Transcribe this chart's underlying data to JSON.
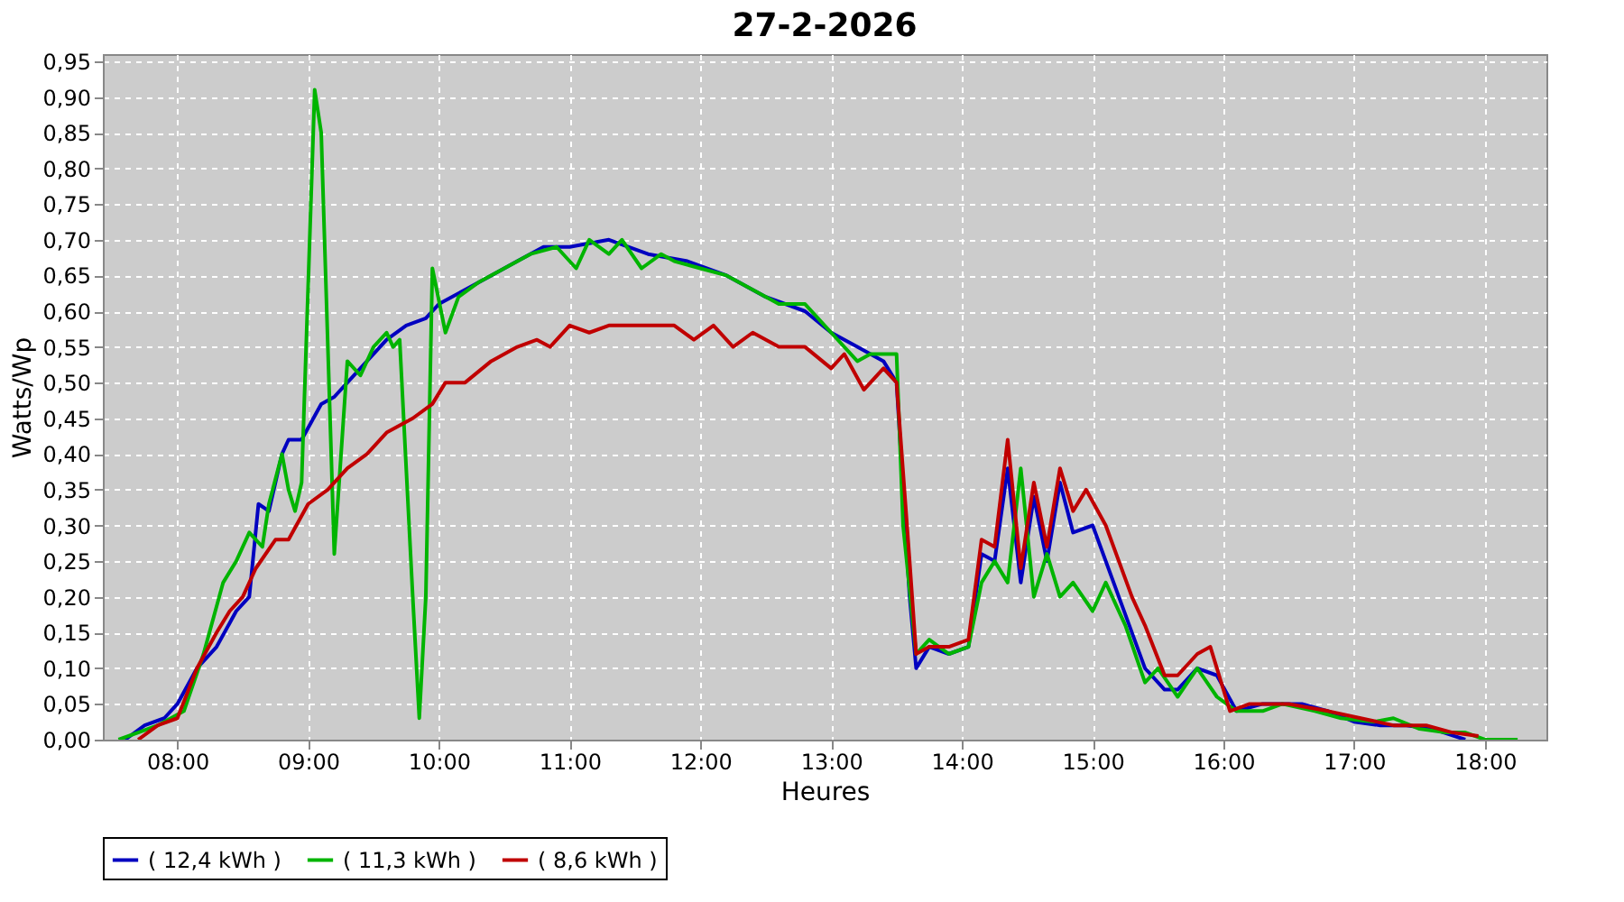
{
  "chart_data": {
    "type": "line",
    "title": "27-2-2026",
    "xlabel": "Heures",
    "ylabel": "Watts/Wp",
    "xlim": [
      7.43,
      18.47
    ],
    "xticks": [
      {
        "value": 8,
        "label": "08:00"
      },
      {
        "value": 9,
        "label": "09:00"
      },
      {
        "value": 10,
        "label": "10:00"
      },
      {
        "value": 11,
        "label": "11:00"
      },
      {
        "value": 12,
        "label": "12:00"
      },
      {
        "value": 13,
        "label": "13:00"
      },
      {
        "value": 14,
        "label": "14:00"
      },
      {
        "value": 15,
        "label": "15:00"
      },
      {
        "value": 16,
        "label": "16:00"
      },
      {
        "value": 17,
        "label": "17:00"
      },
      {
        "value": 18,
        "label": "18:00"
      }
    ],
    "ylim": [
      0,
      0.96
    ],
    "yticks": [
      {
        "value": 0,
        "label": "0,00"
      },
      {
        "value": 0.05,
        "label": "0,05"
      },
      {
        "value": 0.1,
        "label": "0,10"
      },
      {
        "value": 0.15,
        "label": "0,15"
      },
      {
        "value": 0.2,
        "label": "0,20"
      },
      {
        "value": 0.25,
        "label": "0,25"
      },
      {
        "value": 0.3,
        "label": "0,30"
      },
      {
        "value": 0.35,
        "label": "0,35"
      },
      {
        "value": 0.4,
        "label": "0,40"
      },
      {
        "value": 0.45,
        "label": "0,45"
      },
      {
        "value": 0.5,
        "label": "0,50"
      },
      {
        "value": 0.55,
        "label": "0,55"
      },
      {
        "value": 0.6,
        "label": "0,60"
      },
      {
        "value": 0.65,
        "label": "0,65"
      },
      {
        "value": 0.7,
        "label": "0,70"
      },
      {
        "value": 0.75,
        "label": "0,75"
      },
      {
        "value": 0.8,
        "label": "0,80"
      },
      {
        "value": 0.85,
        "label": "0,85"
      },
      {
        "value": 0.9,
        "label": "0,90"
      },
      {
        "value": 0.95,
        "label": "0,95"
      }
    ],
    "grid": true,
    "legend": "bottom",
    "marker": "none",
    "line_style": "solid",
    "series": [
      {
        "name": "( 12,4 kWh )",
        "color": "#0000c0",
        "x": [
          7.6,
          7.75,
          7.9,
          8.0,
          8.15,
          8.3,
          8.45,
          8.55,
          8.62,
          8.7,
          8.8,
          8.85,
          8.95,
          9.1,
          9.2,
          9.3,
          9.45,
          9.6,
          9.75,
          9.9,
          10.0,
          10.2,
          10.4,
          10.6,
          10.8,
          11.0,
          11.3,
          11.6,
          11.9,
          12.2,
          12.5,
          12.8,
          13.0,
          13.2,
          13.4,
          13.5,
          13.6,
          13.65,
          13.75,
          13.9,
          14.05,
          14.15,
          14.25,
          14.35,
          14.45,
          14.55,
          14.65,
          14.75,
          14.85,
          15.0,
          15.2,
          15.4,
          15.55,
          15.65,
          15.8,
          15.95,
          16.1,
          16.3,
          16.6,
          16.8,
          17.0,
          17.2,
          17.4,
          17.6,
          17.85
        ],
        "values": [
          0,
          0.02,
          0.03,
          0.05,
          0.1,
          0.13,
          0.18,
          0.2,
          0.33,
          0.32,
          0.4,
          0.42,
          0.42,
          0.47,
          0.48,
          0.5,
          0.53,
          0.56,
          0.58,
          0.59,
          0.61,
          0.63,
          0.65,
          0.67,
          0.69,
          0.69,
          0.7,
          0.68,
          0.67,
          0.65,
          0.62,
          0.6,
          0.57,
          0.55,
          0.53,
          0.5,
          0.2,
          0.1,
          0.13,
          0.12,
          0.13,
          0.26,
          0.25,
          0.38,
          0.22,
          0.34,
          0.25,
          0.36,
          0.29,
          0.3,
          0.2,
          0.1,
          0.07,
          0.07,
          0.1,
          0.09,
          0.04,
          0.05,
          0.05,
          0.04,
          0.025,
          0.02,
          0.02,
          0.015,
          0
        ]
      },
      {
        "name": "( 11,3 kWh )",
        "color": "#00b400",
        "x": [
          7.55,
          7.7,
          7.85,
          8.05,
          8.2,
          8.35,
          8.45,
          8.55,
          8.65,
          8.7,
          8.8,
          8.85,
          8.9,
          8.95,
          9.05,
          9.1,
          9.2,
          9.3,
          9.4,
          9.5,
          9.6,
          9.65,
          9.7,
          9.8,
          9.85,
          9.9,
          9.95,
          10.05,
          10.15,
          10.3,
          10.5,
          10.7,
          10.9,
          11.05,
          11.15,
          11.3,
          11.4,
          11.55,
          11.7,
          11.8,
          12.0,
          12.2,
          12.4,
          12.6,
          12.8,
          13.0,
          13.2,
          13.3,
          13.5,
          13.55,
          13.65,
          13.75,
          13.9,
          14.05,
          14.15,
          14.25,
          14.35,
          14.45,
          14.55,
          14.65,
          14.75,
          14.85,
          15.0,
          15.1,
          15.25,
          15.4,
          15.5,
          15.65,
          15.8,
          15.95,
          16.1,
          16.3,
          16.45,
          16.7,
          16.9,
          17.15,
          17.3,
          17.5,
          17.7,
          17.85,
          18.0,
          18.25
        ],
        "values": [
          0,
          0.01,
          0.02,
          0.04,
          0.12,
          0.22,
          0.25,
          0.29,
          0.27,
          0.33,
          0.4,
          0.35,
          0.32,
          0.36,
          0.91,
          0.85,
          0.26,
          0.53,
          0.51,
          0.55,
          0.57,
          0.55,
          0.56,
          0.2,
          0.03,
          0.2,
          0.66,
          0.57,
          0.62,
          0.64,
          0.66,
          0.68,
          0.69,
          0.66,
          0.7,
          0.68,
          0.7,
          0.66,
          0.68,
          0.67,
          0.66,
          0.65,
          0.63,
          0.61,
          0.61,
          0.57,
          0.53,
          0.54,
          0.54,
          0.3,
          0.12,
          0.14,
          0.12,
          0.13,
          0.22,
          0.25,
          0.22,
          0.38,
          0.2,
          0.26,
          0.2,
          0.22,
          0.18,
          0.22,
          0.16,
          0.08,
          0.1,
          0.06,
          0.1,
          0.06,
          0.04,
          0.04,
          0.05,
          0.04,
          0.03,
          0.025,
          0.03,
          0.015,
          0.01,
          0.01,
          0,
          0
        ]
      },
      {
        "name": "( 8,6 kWh )",
        "color": "#c00000",
        "x": [
          7.7,
          7.85,
          8.0,
          8.15,
          8.3,
          8.4,
          8.5,
          8.6,
          8.75,
          8.85,
          9.0,
          9.15,
          9.3,
          9.45,
          9.6,
          9.8,
          9.95,
          10.05,
          10.2,
          10.4,
          10.6,
          10.75,
          10.85,
          11.0,
          11.15,
          11.3,
          11.6,
          11.8,
          11.95,
          12.1,
          12.25,
          12.4,
          12.6,
          12.8,
          13.0,
          13.1,
          13.25,
          13.4,
          13.5,
          13.6,
          13.65,
          13.75,
          13.9,
          14.05,
          14.15,
          14.25,
          14.35,
          14.45,
          14.55,
          14.65,
          14.75,
          14.85,
          14.95,
          15.1,
          15.3,
          15.4,
          15.55,
          15.65,
          15.8,
          15.9,
          16.05,
          16.2,
          16.5,
          16.8,
          17.05,
          17.3,
          17.55,
          17.75,
          17.95
        ],
        "values": [
          0,
          0.02,
          0.03,
          0.1,
          0.15,
          0.18,
          0.2,
          0.24,
          0.28,
          0.28,
          0.33,
          0.35,
          0.38,
          0.4,
          0.43,
          0.45,
          0.47,
          0.5,
          0.5,
          0.53,
          0.55,
          0.56,
          0.55,
          0.58,
          0.57,
          0.58,
          0.58,
          0.58,
          0.56,
          0.58,
          0.55,
          0.57,
          0.55,
          0.55,
          0.52,
          0.54,
          0.49,
          0.52,
          0.5,
          0.25,
          0.12,
          0.13,
          0.13,
          0.14,
          0.28,
          0.27,
          0.42,
          0.24,
          0.36,
          0.27,
          0.38,
          0.32,
          0.35,
          0.3,
          0.2,
          0.16,
          0.09,
          0.09,
          0.12,
          0.13,
          0.04,
          0.05,
          0.05,
          0.04,
          0.03,
          0.02,
          0.02,
          0.01,
          0.005
        ]
      }
    ]
  }
}
